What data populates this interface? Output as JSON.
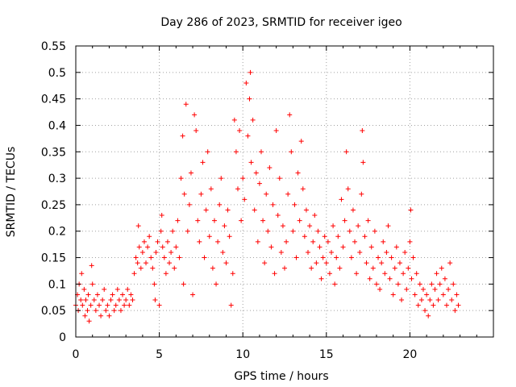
{
  "chart_data": {
    "type": "scatter",
    "title": "Day 286 of 2023, SRMTID for receiver igeo",
    "xlabel": "GPS time / hours",
    "ylabel": "SRMTID / TECUs",
    "xlim": [
      0,
      25
    ],
    "ylim": [
      0,
      0.55
    ],
    "xticks": [
      0,
      5,
      10,
      15,
      20
    ],
    "yticks": [
      0,
      0.05,
      0.1,
      0.15,
      0.2,
      0.25,
      0.3,
      0.35,
      0.4,
      0.45,
      0.5,
      0.55
    ],
    "ytick_labels": [
      "0",
      "0.05",
      "0.1",
      "0.15",
      "0.2",
      "0.25",
      "0.3",
      "0.35",
      "0.4",
      "0.45",
      "0.5",
      "0.55"
    ],
    "xtick_labels": [
      "0",
      "5",
      "10",
      "15",
      "20"
    ],
    "grid": true,
    "marker": "+",
    "color": "#ff0000",
    "series": [
      {
        "name": "SRMTID",
        "points": [
          [
            0.0,
            0.06
          ],
          [
            0.1,
            0.08
          ],
          [
            0.15,
            0.05
          ],
          [
            0.2,
            0.1
          ],
          [
            0.3,
            0.07
          ],
          [
            0.35,
            0.12
          ],
          [
            0.4,
            0.06
          ],
          [
            0.5,
            0.09
          ],
          [
            0.55,
            0.04
          ],
          [
            0.6,
            0.07
          ],
          [
            0.7,
            0.05
          ],
          [
            0.75,
            0.08
          ],
          [
            0.8,
            0.03
          ],
          [
            0.9,
            0.06
          ],
          [
            0.95,
            0.135
          ],
          [
            1.0,
            0.1
          ],
          [
            1.1,
            0.07
          ],
          [
            1.2,
            0.05
          ],
          [
            1.3,
            0.08
          ],
          [
            1.4,
            0.06
          ],
          [
            1.5,
            0.04
          ],
          [
            1.6,
            0.07
          ],
          [
            1.7,
            0.09
          ],
          [
            1.8,
            0.05
          ],
          [
            1.9,
            0.06
          ],
          [
            2.0,
            0.04
          ],
          [
            2.1,
            0.07
          ],
          [
            2.2,
            0.08
          ],
          [
            2.3,
            0.05
          ],
          [
            2.4,
            0.06
          ],
          [
            2.5,
            0.09
          ],
          [
            2.6,
            0.07
          ],
          [
            2.7,
            0.05
          ],
          [
            2.8,
            0.08
          ],
          [
            2.9,
            0.06
          ],
          [
            3.0,
            0.07
          ],
          [
            3.1,
            0.09
          ],
          [
            3.2,
            0.06
          ],
          [
            3.3,
            0.08
          ],
          [
            3.4,
            0.07
          ],
          [
            3.5,
            0.12
          ],
          [
            3.6,
            0.15
          ],
          [
            3.7,
            0.14
          ],
          [
            3.75,
            0.21
          ],
          [
            3.8,
            0.17
          ],
          [
            3.9,
            0.13
          ],
          [
            4.0,
            0.16
          ],
          [
            4.1,
            0.18
          ],
          [
            4.2,
            0.14
          ],
          [
            4.3,
            0.17
          ],
          [
            4.4,
            0.19
          ],
          [
            4.5,
            0.15
          ],
          [
            4.6,
            0.13
          ],
          [
            4.7,
            0.1
          ],
          [
            4.75,
            0.07
          ],
          [
            4.8,
            0.16
          ],
          [
            4.9,
            0.18
          ],
          [
            5.0,
            0.06
          ],
          [
            5.1,
            0.2
          ],
          [
            5.15,
            0.23
          ],
          [
            5.2,
            0.17
          ],
          [
            5.3,
            0.15
          ],
          [
            5.4,
            0.12
          ],
          [
            5.5,
            0.18
          ],
          [
            5.6,
            0.14
          ],
          [
            5.7,
            0.16
          ],
          [
            5.8,
            0.2
          ],
          [
            5.9,
            0.13
          ],
          [
            6.0,
            0.17
          ],
          [
            6.1,
            0.22
          ],
          [
            6.2,
            0.15
          ],
          [
            6.3,
            0.3
          ],
          [
            6.4,
            0.38
          ],
          [
            6.45,
            0.1
          ],
          [
            6.5,
            0.27
          ],
          [
            6.6,
            0.44
          ],
          [
            6.7,
            0.2
          ],
          [
            6.8,
            0.25
          ],
          [
            6.9,
            0.31
          ],
          [
            7.0,
            0.08
          ],
          [
            7.1,
            0.42
          ],
          [
            7.2,
            0.39
          ],
          [
            7.3,
            0.22
          ],
          [
            7.4,
            0.18
          ],
          [
            7.5,
            0.27
          ],
          [
            7.6,
            0.33
          ],
          [
            7.7,
            0.15
          ],
          [
            7.8,
            0.24
          ],
          [
            7.9,
            0.35
          ],
          [
            8.0,
            0.19
          ],
          [
            8.1,
            0.28
          ],
          [
            8.2,
            0.13
          ],
          [
            8.3,
            0.22
          ],
          [
            8.4,
            0.1
          ],
          [
            8.5,
            0.18
          ],
          [
            8.6,
            0.25
          ],
          [
            8.7,
            0.3
          ],
          [
            8.8,
            0.16
          ],
          [
            8.9,
            0.21
          ],
          [
            9.0,
            0.14
          ],
          [
            9.1,
            0.24
          ],
          [
            9.2,
            0.19
          ],
          [
            9.3,
            0.06
          ],
          [
            9.4,
            0.12
          ],
          [
            9.5,
            0.41
          ],
          [
            9.6,
            0.35
          ],
          [
            9.7,
            0.28
          ],
          [
            9.8,
            0.39
          ],
          [
            9.9,
            0.22
          ],
          [
            10.0,
            0.3
          ],
          [
            10.1,
            0.26
          ],
          [
            10.2,
            0.48
          ],
          [
            10.3,
            0.38
          ],
          [
            10.4,
            0.45
          ],
          [
            10.45,
            0.5
          ],
          [
            10.5,
            0.33
          ],
          [
            10.6,
            0.41
          ],
          [
            10.7,
            0.24
          ],
          [
            10.8,
            0.31
          ],
          [
            10.9,
            0.18
          ],
          [
            11.0,
            0.29
          ],
          [
            11.1,
            0.35
          ],
          [
            11.2,
            0.22
          ],
          [
            11.3,
            0.14
          ],
          [
            11.4,
            0.27
          ],
          [
            11.5,
            0.2
          ],
          [
            11.6,
            0.32
          ],
          [
            11.7,
            0.17
          ],
          [
            11.8,
            0.25
          ],
          [
            11.9,
            0.12
          ],
          [
            12.0,
            0.39
          ],
          [
            12.1,
            0.23
          ],
          [
            12.2,
            0.3
          ],
          [
            12.3,
            0.16
          ],
          [
            12.4,
            0.21
          ],
          [
            12.5,
            0.13
          ],
          [
            12.6,
            0.18
          ],
          [
            12.7,
            0.27
          ],
          [
            12.8,
            0.42
          ],
          [
            12.9,
            0.35
          ],
          [
            13.0,
            0.2
          ],
          [
            13.1,
            0.25
          ],
          [
            13.2,
            0.15
          ],
          [
            13.3,
            0.31
          ],
          [
            13.4,
            0.22
          ],
          [
            13.5,
            0.37
          ],
          [
            13.6,
            0.28
          ],
          [
            13.7,
            0.19
          ],
          [
            13.8,
            0.24
          ],
          [
            13.9,
            0.16
          ],
          [
            14.0,
            0.21
          ],
          [
            14.1,
            0.13
          ],
          [
            14.2,
            0.18
          ],
          [
            14.3,
            0.23
          ],
          [
            14.4,
            0.14
          ],
          [
            14.5,
            0.2
          ],
          [
            14.6,
            0.17
          ],
          [
            14.7,
            0.11
          ],
          [
            14.8,
            0.15
          ],
          [
            14.9,
            0.19
          ],
          [
            15.0,
            0.14
          ],
          [
            15.1,
            0.18
          ],
          [
            15.2,
            0.12
          ],
          [
            15.3,
            0.16
          ],
          [
            15.4,
            0.21
          ],
          [
            15.5,
            0.1
          ],
          [
            15.6,
            0.15
          ],
          [
            15.7,
            0.19
          ],
          [
            15.8,
            0.13
          ],
          [
            15.9,
            0.26
          ],
          [
            16.0,
            0.17
          ],
          [
            16.1,
            0.22
          ],
          [
            16.2,
            0.35
          ],
          [
            16.3,
            0.28
          ],
          [
            16.4,
            0.2
          ],
          [
            16.5,
            0.15
          ],
          [
            16.6,
            0.24
          ],
          [
            16.7,
            0.18
          ],
          [
            16.8,
            0.12
          ],
          [
            16.9,
            0.21
          ],
          [
            17.0,
            0.16
          ],
          [
            17.1,
            0.27
          ],
          [
            17.15,
            0.39
          ],
          [
            17.2,
            0.33
          ],
          [
            17.3,
            0.19
          ],
          [
            17.4,
            0.14
          ],
          [
            17.5,
            0.22
          ],
          [
            17.6,
            0.11
          ],
          [
            17.7,
            0.17
          ],
          [
            17.8,
            0.13
          ],
          [
            17.9,
            0.2
          ],
          [
            18.0,
            0.1
          ],
          [
            18.1,
            0.15
          ],
          [
            18.2,
            0.09
          ],
          [
            18.3,
            0.14
          ],
          [
            18.4,
            0.18
          ],
          [
            18.5,
            0.12
          ],
          [
            18.6,
            0.16
          ],
          [
            18.7,
            0.21
          ],
          [
            18.8,
            0.11
          ],
          [
            18.9,
            0.15
          ],
          [
            19.0,
            0.08
          ],
          [
            19.1,
            0.13
          ],
          [
            19.2,
            0.17
          ],
          [
            19.3,
            0.1
          ],
          [
            19.4,
            0.14
          ],
          [
            19.5,
            0.07
          ],
          [
            19.6,
            0.12
          ],
          [
            19.7,
            0.16
          ],
          [
            19.8,
            0.09
          ],
          [
            19.9,
            0.13
          ],
          [
            20.0,
            0.18
          ],
          [
            20.05,
            0.24
          ],
          [
            20.1,
            0.11
          ],
          [
            20.2,
            0.15
          ],
          [
            20.3,
            0.08
          ],
          [
            20.4,
            0.12
          ],
          [
            20.5,
            0.06
          ],
          [
            20.6,
            0.1
          ],
          [
            20.7,
            0.07
          ],
          [
            20.8,
            0.09
          ],
          [
            20.9,
            0.05
          ],
          [
            21.0,
            0.08
          ],
          [
            21.1,
            0.04
          ],
          [
            21.2,
            0.07
          ],
          [
            21.3,
            0.1
          ],
          [
            21.4,
            0.06
          ],
          [
            21.5,
            0.09
          ],
          [
            21.6,
            0.12
          ],
          [
            21.7,
            0.07
          ],
          [
            21.8,
            0.1
          ],
          [
            21.9,
            0.13
          ],
          [
            22.0,
            0.08
          ],
          [
            22.1,
            0.11
          ],
          [
            22.2,
            0.06
          ],
          [
            22.3,
            0.09
          ],
          [
            22.4,
            0.14
          ],
          [
            22.5,
            0.07
          ],
          [
            22.6,
            0.1
          ],
          [
            22.7,
            0.05
          ],
          [
            22.8,
            0.08
          ],
          [
            22.9,
            0.06
          ]
        ]
      }
    ]
  }
}
